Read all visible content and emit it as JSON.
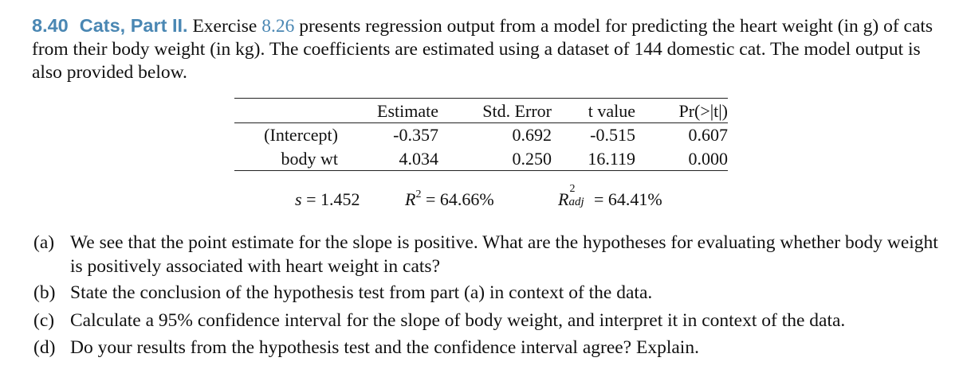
{
  "exercise": {
    "number": "8.40",
    "title": "Cats, Part II.",
    "intro_before_ref": "Exercise",
    "ref": "8.26",
    "intro_after_ref": "presents regression output from a model for predicting the heart weight (in g) of cats from their body weight (in kg). The coefficients are estimated using a dataset of 144 domestic cat. The model output is also provided below."
  },
  "regression_table": {
    "headers": [
      "",
      "Estimate",
      "Std. Error",
      "t value",
      "Pr(>|t|)"
    ],
    "rows": [
      [
        "(Intercept)",
        "-0.357",
        "0.692",
        "-0.515",
        "0.607"
      ],
      [
        "body wt",
        "4.034",
        "0.250",
        "16.119",
        "0.000"
      ]
    ]
  },
  "model_stats": {
    "s_symbol": "s",
    "s_value": "= 1.452",
    "r2_symbol": "R",
    "r2_exponent": "2",
    "r2_value": "= 64.66%",
    "r2adj_symbol": "R",
    "r2adj_exponent": "2",
    "r2adj_subscript": "adj",
    "r2adj_value": "= 64.41%"
  },
  "questions": [
    {
      "label": "(a)",
      "text": "We see that the point estimate for the slope is positive. What are the hypotheses for evaluating whether body weight is positively associated with heart weight in cats?"
    },
    {
      "label": "(b)",
      "text": "State the conclusion of the hypothesis test from part (a) in context of the data."
    },
    {
      "label": "(c)",
      "text": "Calculate a 95% confidence interval for the slope of body weight, and interpret it in context of the data."
    },
    {
      "label": "(d)",
      "text": "Do your results from the hypothesis test and the confidence interval agree? Explain."
    }
  ]
}
